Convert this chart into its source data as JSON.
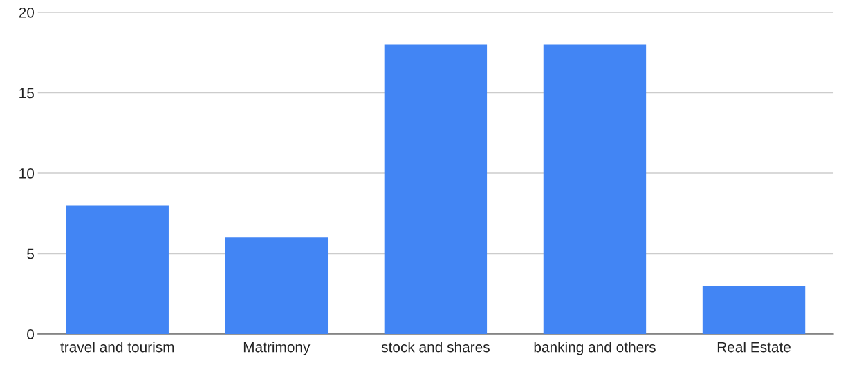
{
  "chart_data": {
    "type": "bar",
    "categories": [
      "travel and tourism",
      "Matrimony",
      "stock and shares",
      "banking and others",
      "Real Estate"
    ],
    "values": [
      8,
      6,
      18,
      18,
      3
    ],
    "color": "#4285f4",
    "ylim": [
      0,
      20
    ],
    "yticks": [
      0,
      5,
      10,
      15,
      20
    ],
    "grid": "y",
    "legend": false
  }
}
